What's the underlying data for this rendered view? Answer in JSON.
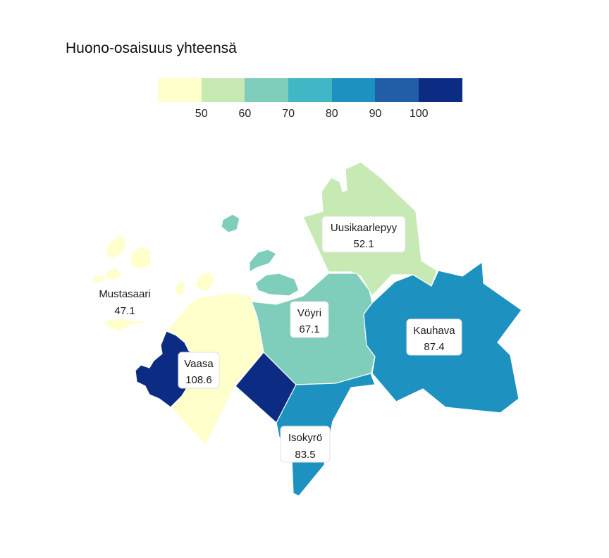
{
  "title": "Huono-osaisuus yhteensä",
  "legend": {
    "colors": [
      "#ffffcc",
      "#c7e9b4",
      "#7fcdbb",
      "#41b6c4",
      "#1d91c0",
      "#225ea8",
      "#0c2c84"
    ],
    "ticks": [
      "50",
      "60",
      "70",
      "80",
      "90",
      "100"
    ]
  },
  "regions": [
    {
      "name": "Mustasaari",
      "value": "47.1",
      "color": "#ffffcc"
    },
    {
      "name": "Uusikaarlepyy",
      "value": "52.1",
      "color": "#c7e9b4"
    },
    {
      "name": "Vöyri",
      "value": "67.1",
      "color": "#7fcdbb"
    },
    {
      "name": "Isokyrö",
      "value": "83.5",
      "color": "#1d91c0"
    },
    {
      "name": "Kauhava",
      "value": "87.4",
      "color": "#1d91c0"
    },
    {
      "name": "Vaasa",
      "value": "108.6",
      "color": "#0c2c84"
    }
  ]
}
